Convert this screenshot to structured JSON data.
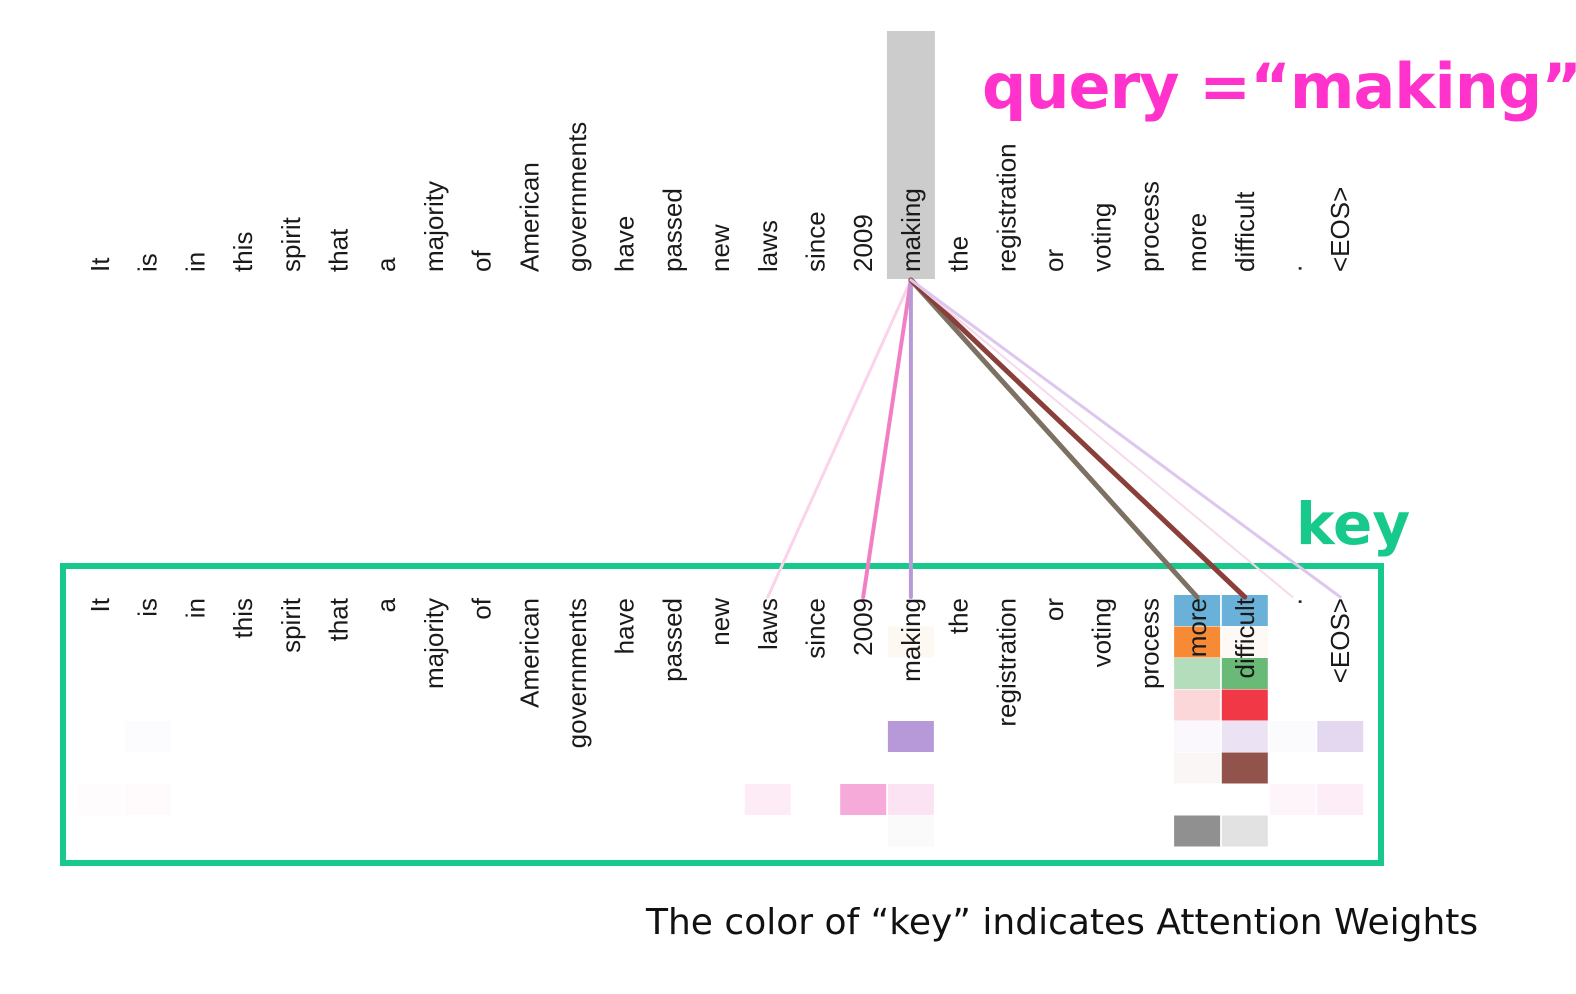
{
  "query_label": "query =“making”",
  "key_label": "key",
  "caption": "The color of “key” indicates Attention Weights",
  "tokens": [
    "It",
    "is",
    "in",
    "this",
    "spirit",
    "that",
    "a",
    "majority",
    "of",
    "American",
    "governments",
    "have",
    "passed",
    "new",
    "laws",
    "since",
    "2009",
    "making",
    "the",
    "registration",
    "or",
    "voting",
    "process",
    "more",
    "difficult",
    ".",
    "<EOS>"
  ],
  "query_token": "making",
  "colors": {
    "query_highlight": "#cccccc",
    "key_box": "#18c98c",
    "query_text": "#ff33cc"
  },
  "heads": [
    {
      "color": "#5aa9d6",
      "weights": {
        "more": 0.9,
        "difficult": 0.9
      }
    },
    {
      "color": "#f5842a",
      "weights": {
        "making": 0.06,
        "more": 0.95,
        "difficult": 0.05
      }
    },
    {
      "color": "#59b368",
      "weights": {
        "more": 0.45,
        "difficult": 0.9
      }
    },
    {
      "color": "#ee2233",
      "weights": {
        "more": 0.18,
        "difficult": 0.9
      }
    },
    {
      "color": "#a57fcf",
      "weights": {
        "is": 0.03,
        "making": 0.8,
        "more": 0.05,
        "difficult": 0.22,
        ".": 0.04,
        "<EOS>": 0.3
      }
    },
    {
      "color": "#8c4a42",
      "weights": {
        "more": 0.05,
        "difficult": 0.95
      }
    },
    {
      "color": "#f39bd3",
      "weights": {
        "It": 0.03,
        "is": 0.04,
        "laws": 0.2,
        "2009": 0.85,
        "making": 0.28,
        ".": 0.1,
        "<EOS>": 0.18
      }
    },
    {
      "color": "#8a8a8a",
      "weights": {
        "making": 0.04,
        "more": 0.95,
        "difficult": 0.25
      }
    }
  ],
  "links": [
    {
      "key": "laws",
      "color": "#fbd3ea",
      "width": 3
    },
    {
      "key": "2009",
      "color": "#f27fc6",
      "width": 4
    },
    {
      "key": "making",
      "color": "#b89ad6",
      "width": 4
    },
    {
      "key": "more",
      "color": "#7c7163",
      "width": 5
    },
    {
      "key": "difficult",
      "color": "#8a3f3a",
      "width": 5
    },
    {
      "key": ".",
      "color": "#f7d9ec",
      "width": 2
    },
    {
      "key": "<EOS>",
      "color": "#ddc7ee",
      "width": 3
    }
  ]
}
